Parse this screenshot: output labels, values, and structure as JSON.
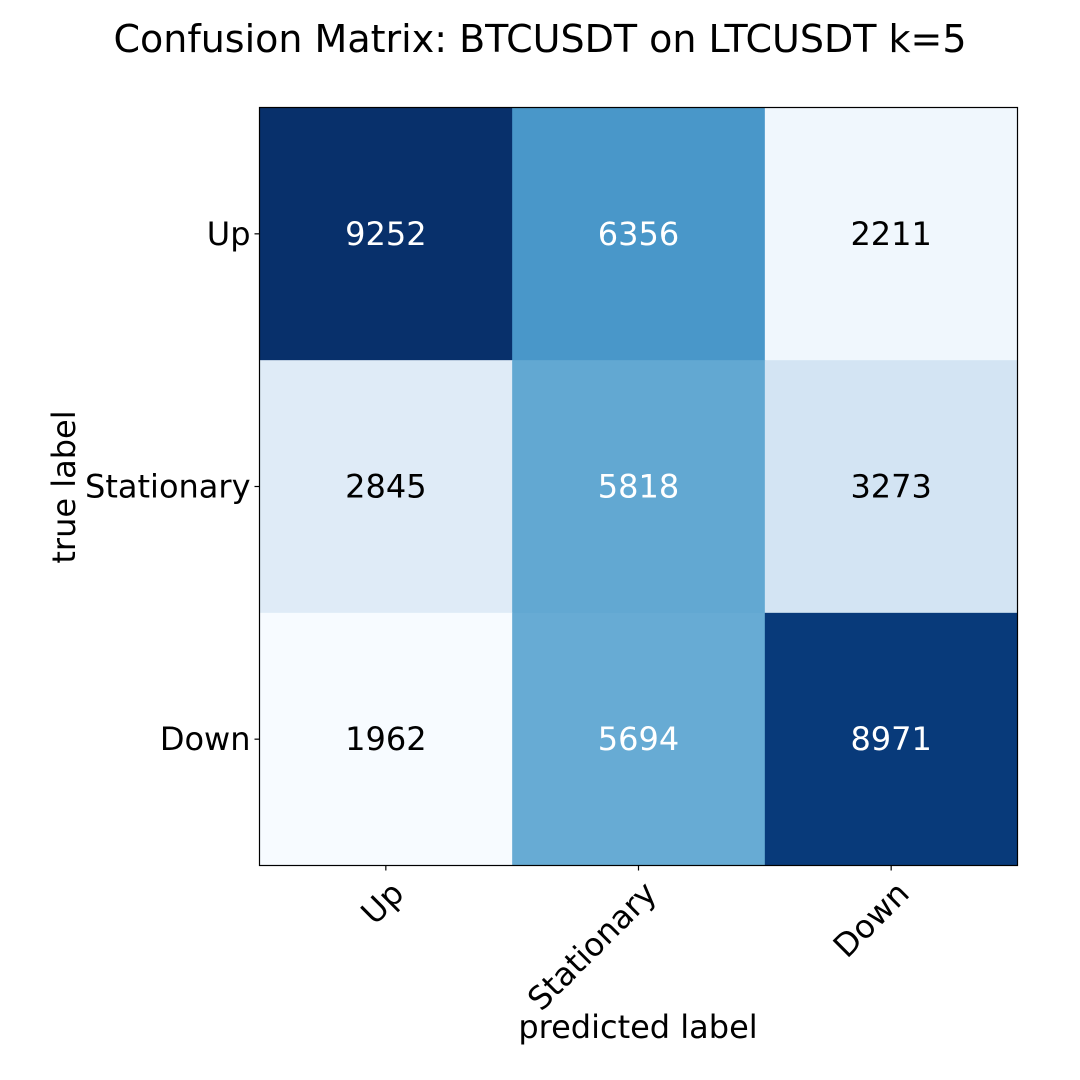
{
  "chart_data": {
    "type": "heatmap",
    "title": "Confusion Matrix: BTCUSDT on LTCUSDT k=5",
    "xlabel": "predicted label",
    "ylabel": "true label",
    "x_categories": [
      "Up",
      "Stationary",
      "Down"
    ],
    "y_categories": [
      "Up",
      "Stationary",
      "Down"
    ],
    "values": [
      [
        9252,
        6356,
        2211
      ],
      [
        2845,
        5818,
        3273
      ],
      [
        1962,
        5694,
        8971
      ]
    ],
    "colormap": "Blues",
    "colormap_stops": [
      "#f7fbff",
      "#deebf7",
      "#c6dbef",
      "#9ecae1",
      "#6baed6",
      "#4292c6",
      "#2171b5",
      "#08519c",
      "#08306b"
    ],
    "color_range": [
      1962,
      9252
    ],
    "text_colors": {
      "light": "#ffffff",
      "dark": "#000000"
    }
  }
}
